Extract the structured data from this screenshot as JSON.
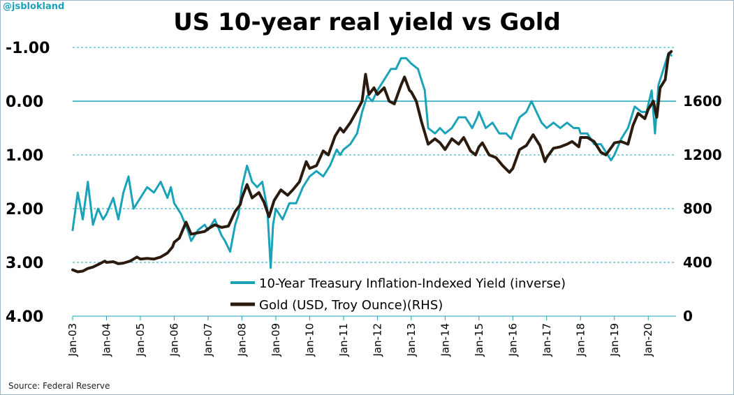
{
  "handle": "@jsblokland",
  "source": "Source: Federal Reserve",
  "colors": {
    "yield": "#1aa3b8",
    "gold": "#2b1a0e",
    "grid": "#1aa3b8",
    "axis": "#1aa3b8"
  },
  "chart_data": {
    "type": "line",
    "title": "US 10-year real yield vs Gold",
    "left_axis": {
      "ticks": [
        "-1.00",
        "0.00",
        "1.00",
        "2.00",
        "3.00",
        "4.00"
      ],
      "values": [
        -1,
        0,
        1,
        2,
        3,
        4
      ],
      "range": [
        -1,
        4
      ],
      "inverted": true
    },
    "right_axis": {
      "ticks": [
        "1600",
        "1200",
        "800",
        "400",
        "0"
      ],
      "values": [
        1600,
        1200,
        800,
        400,
        0
      ],
      "range": [
        0,
        2000
      ]
    },
    "x_ticks": [
      "Jan-03",
      "Jan-04",
      "Jan-05",
      "Jan-06",
      "Jan-07",
      "Jan-08",
      "Jan-09",
      "Jan-10",
      "Jan-11",
      "Jan-12",
      "Jan-13",
      "Jan-14",
      "Jan-15",
      "Jan-16",
      "Jan-17",
      "Jan-18",
      "Jan-19",
      "Jan-20"
    ],
    "x_range": [
      2003.0,
      2020.7
    ],
    "grid": "horizontal dashed",
    "legend_position": "bottom-right",
    "series": [
      {
        "name": "10-Year Treasury Inflation-Indexed Yield (inverse)",
        "axis": "left",
        "points": [
          [
            2003.0,
            2.4
          ],
          [
            2003.15,
            1.7
          ],
          [
            2003.3,
            2.2
          ],
          [
            2003.45,
            1.5
          ],
          [
            2003.6,
            2.3
          ],
          [
            2003.75,
            2.0
          ],
          [
            2003.9,
            2.2
          ],
          [
            2004.0,
            2.1
          ],
          [
            2004.2,
            1.8
          ],
          [
            2004.35,
            2.2
          ],
          [
            2004.5,
            1.7
          ],
          [
            2004.65,
            1.4
          ],
          [
            2004.8,
            2.0
          ],
          [
            2004.9,
            1.9
          ],
          [
            2005.0,
            1.8
          ],
          [
            2005.2,
            1.6
          ],
          [
            2005.4,
            1.7
          ],
          [
            2005.6,
            1.5
          ],
          [
            2005.8,
            1.8
          ],
          [
            2005.9,
            1.6
          ],
          [
            2006.0,
            1.9
          ],
          [
            2006.2,
            2.1
          ],
          [
            2006.4,
            2.4
          ],
          [
            2006.5,
            2.6
          ],
          [
            2006.7,
            2.4
          ],
          [
            2006.9,
            2.3
          ],
          [
            2007.0,
            2.4
          ],
          [
            2007.2,
            2.2
          ],
          [
            2007.4,
            2.5
          ],
          [
            2007.5,
            2.6
          ],
          [
            2007.65,
            2.8
          ],
          [
            2007.8,
            2.3
          ],
          [
            2007.9,
            2.1
          ],
          [
            2008.0,
            1.6
          ],
          [
            2008.15,
            1.2
          ],
          [
            2008.3,
            1.5
          ],
          [
            2008.45,
            1.6
          ],
          [
            2008.6,
            1.5
          ],
          [
            2008.75,
            2.0
          ],
          [
            2008.85,
            3.1
          ],
          [
            2008.92,
            2.3
          ],
          [
            2009.0,
            2.0
          ],
          [
            2009.2,
            2.2
          ],
          [
            2009.4,
            1.9
          ],
          [
            2009.6,
            1.9
          ],
          [
            2009.8,
            1.6
          ],
          [
            2010.0,
            1.4
          ],
          [
            2010.2,
            1.3
          ],
          [
            2010.4,
            1.4
          ],
          [
            2010.6,
            1.2
          ],
          [
            2010.8,
            0.9
          ],
          [
            2010.9,
            1.0
          ],
          [
            2011.0,
            0.9
          ],
          [
            2011.2,
            0.8
          ],
          [
            2011.4,
            0.6
          ],
          [
            2011.55,
            0.2
          ],
          [
            2011.7,
            -0.1
          ],
          [
            2011.85,
            0.0
          ],
          [
            2012.0,
            -0.2
          ],
          [
            2012.2,
            -0.4
          ],
          [
            2012.4,
            -0.6
          ],
          [
            2012.55,
            -0.6
          ],
          [
            2012.7,
            -0.8
          ],
          [
            2012.85,
            -0.8
          ],
          [
            2013.0,
            -0.7
          ],
          [
            2013.2,
            -0.6
          ],
          [
            2013.4,
            -0.2
          ],
          [
            2013.5,
            0.5
          ],
          [
            2013.7,
            0.6
          ],
          [
            2013.85,
            0.5
          ],
          [
            2014.0,
            0.6
          ],
          [
            2014.2,
            0.5
          ],
          [
            2014.4,
            0.3
          ],
          [
            2014.6,
            0.3
          ],
          [
            2014.8,
            0.5
          ],
          [
            2014.95,
            0.3
          ],
          [
            2015.0,
            0.2
          ],
          [
            2015.2,
            0.5
          ],
          [
            2015.4,
            0.4
          ],
          [
            2015.6,
            0.6
          ],
          [
            2015.8,
            0.6
          ],
          [
            2015.95,
            0.7
          ],
          [
            2016.0,
            0.6
          ],
          [
            2016.2,
            0.3
          ],
          [
            2016.4,
            0.2
          ],
          [
            2016.55,
            0.0
          ],
          [
            2016.7,
            0.2
          ],
          [
            2016.85,
            0.4
          ],
          [
            2017.0,
            0.5
          ],
          [
            2017.2,
            0.4
          ],
          [
            2017.4,
            0.5
          ],
          [
            2017.6,
            0.4
          ],
          [
            2017.8,
            0.5
          ],
          [
            2017.95,
            0.5
          ],
          [
            2018.0,
            0.6
          ],
          [
            2018.2,
            0.6
          ],
          [
            2018.4,
            0.8
          ],
          [
            2018.6,
            0.8
          ],
          [
            2018.8,
            1.0
          ],
          [
            2018.9,
            1.1
          ],
          [
            2019.0,
            1.0
          ],
          [
            2019.2,
            0.7
          ],
          [
            2019.4,
            0.5
          ],
          [
            2019.6,
            0.1
          ],
          [
            2019.8,
            0.2
          ],
          [
            2019.95,
            0.2
          ],
          [
            2020.1,
            -0.2
          ],
          [
            2020.2,
            0.6
          ],
          [
            2020.3,
            -0.3
          ],
          [
            2020.45,
            -0.6
          ],
          [
            2020.6,
            -0.9
          ],
          [
            2020.68,
            -0.85
          ]
        ]
      },
      {
        "name": "Gold (USD, Troy Ounce)(RHS)",
        "axis": "right",
        "points": [
          [
            2003.0,
            345
          ],
          [
            2003.15,
            330
          ],
          [
            2003.3,
            335
          ],
          [
            2003.45,
            355
          ],
          [
            2003.6,
            365
          ],
          [
            2003.8,
            390
          ],
          [
            2003.95,
            410
          ],
          [
            2004.0,
            400
          ],
          [
            2004.2,
            405
          ],
          [
            2004.35,
            390
          ],
          [
            2004.5,
            395
          ],
          [
            2004.7,
            410
          ],
          [
            2004.9,
            440
          ],
          [
            2005.0,
            425
          ],
          [
            2005.2,
            430
          ],
          [
            2005.4,
            425
          ],
          [
            2005.6,
            440
          ],
          [
            2005.8,
            470
          ],
          [
            2005.95,
            515
          ],
          [
            2006.0,
            550
          ],
          [
            2006.15,
            580
          ],
          [
            2006.35,
            700
          ],
          [
            2006.5,
            610
          ],
          [
            2006.7,
            620
          ],
          [
            2006.9,
            630
          ],
          [
            2007.0,
            650
          ],
          [
            2007.2,
            680
          ],
          [
            2007.4,
            660
          ],
          [
            2007.6,
            670
          ],
          [
            2007.8,
            780
          ],
          [
            2007.95,
            830
          ],
          [
            2008.0,
            880
          ],
          [
            2008.15,
            980
          ],
          [
            2008.3,
            880
          ],
          [
            2008.5,
            920
          ],
          [
            2008.65,
            850
          ],
          [
            2008.8,
            740
          ],
          [
            2008.95,
            860
          ],
          [
            2009.0,
            880
          ],
          [
            2009.15,
            940
          ],
          [
            2009.35,
            900
          ],
          [
            2009.5,
            940
          ],
          [
            2009.7,
            1000
          ],
          [
            2009.9,
            1150
          ],
          [
            2010.0,
            1100
          ],
          [
            2010.2,
            1120
          ],
          [
            2010.4,
            1230
          ],
          [
            2010.55,
            1200
          ],
          [
            2010.75,
            1340
          ],
          [
            2010.9,
            1400
          ],
          [
            2011.0,
            1370
          ],
          [
            2011.2,
            1440
          ],
          [
            2011.4,
            1530
          ],
          [
            2011.55,
            1600
          ],
          [
            2011.65,
            1800
          ],
          [
            2011.75,
            1650
          ],
          [
            2011.9,
            1700
          ],
          [
            2012.0,
            1650
          ],
          [
            2012.2,
            1700
          ],
          [
            2012.35,
            1600
          ],
          [
            2012.5,
            1580
          ],
          [
            2012.7,
            1720
          ],
          [
            2012.8,
            1780
          ],
          [
            2012.95,
            1680
          ],
          [
            2013.0,
            1670
          ],
          [
            2013.15,
            1600
          ],
          [
            2013.3,
            1450
          ],
          [
            2013.5,
            1280
          ],
          [
            2013.7,
            1320
          ],
          [
            2013.85,
            1290
          ],
          [
            2014.0,
            1240
          ],
          [
            2014.2,
            1320
          ],
          [
            2014.4,
            1280
          ],
          [
            2014.55,
            1330
          ],
          [
            2014.75,
            1230
          ],
          [
            2014.9,
            1200
          ],
          [
            2015.0,
            1260
          ],
          [
            2015.1,
            1290
          ],
          [
            2015.3,
            1200
          ],
          [
            2015.5,
            1180
          ],
          [
            2015.7,
            1120
          ],
          [
            2015.9,
            1070
          ],
          [
            2016.0,
            1100
          ],
          [
            2016.2,
            1240
          ],
          [
            2016.4,
            1270
          ],
          [
            2016.6,
            1350
          ],
          [
            2016.8,
            1270
          ],
          [
            2016.95,
            1150
          ],
          [
            2017.0,
            1180
          ],
          [
            2017.2,
            1250
          ],
          [
            2017.4,
            1260
          ],
          [
            2017.6,
            1280
          ],
          [
            2017.75,
            1300
          ],
          [
            2017.95,
            1260
          ],
          [
            2018.0,
            1330
          ],
          [
            2018.2,
            1330
          ],
          [
            2018.4,
            1300
          ],
          [
            2018.6,
            1220
          ],
          [
            2018.75,
            1200
          ],
          [
            2018.95,
            1270
          ],
          [
            2019.0,
            1290
          ],
          [
            2019.2,
            1300
          ],
          [
            2019.4,
            1280
          ],
          [
            2019.55,
            1420
          ],
          [
            2019.7,
            1510
          ],
          [
            2019.9,
            1470
          ],
          [
            2020.0,
            1540
          ],
          [
            2020.15,
            1600
          ],
          [
            2020.25,
            1480
          ],
          [
            2020.35,
            1700
          ],
          [
            2020.5,
            1760
          ],
          [
            2020.6,
            1950
          ],
          [
            2020.68,
            1970
          ]
        ]
      }
    ]
  }
}
